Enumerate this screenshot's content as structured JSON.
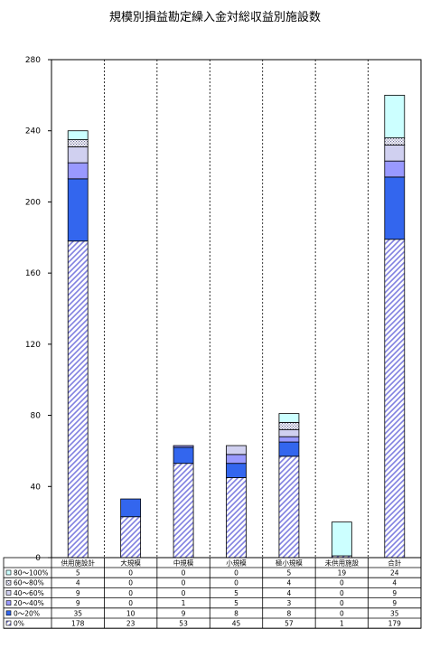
{
  "chart_data": {
    "type": "bar",
    "stacked": true,
    "title": "規模別損益勘定繰入金対総収益別施設数",
    "categories": [
      "供用施設計",
      "大規模",
      "中規模",
      "小規模",
      "極小規模",
      "未供用施設",
      "合計"
    ],
    "ylim": [
      0,
      280
    ],
    "yticks": [
      0,
      40,
      80,
      120,
      160,
      200,
      240,
      280
    ],
    "grid": "vertical-dashed",
    "legend": "table-bottom",
    "series": [
      {
        "name": "0%",
        "values": [
          178,
          23,
          53,
          45,
          57,
          1,
          179
        ],
        "fill": "hatch"
      },
      {
        "name": "0～20%",
        "values": [
          35,
          10,
          9,
          8,
          8,
          0,
          35
        ],
        "fill": "#3366ee"
      },
      {
        "name": "20～40%",
        "values": [
          9,
          0,
          1,
          5,
          3,
          0,
          9
        ],
        "fill": "#9999ff"
      },
      {
        "name": "40～60%",
        "values": [
          9,
          0,
          0,
          5,
          4,
          0,
          9
        ],
        "fill": "#d0d0f0"
      },
      {
        "name": "60～80%",
        "values": [
          4,
          0,
          0,
          0,
          4,
          0,
          4
        ],
        "fill": "dots"
      },
      {
        "name": "80～100%",
        "values": [
          5,
          0,
          0,
          0,
          5,
          19,
          24
        ],
        "fill": "#ccffff"
      }
    ]
  }
}
